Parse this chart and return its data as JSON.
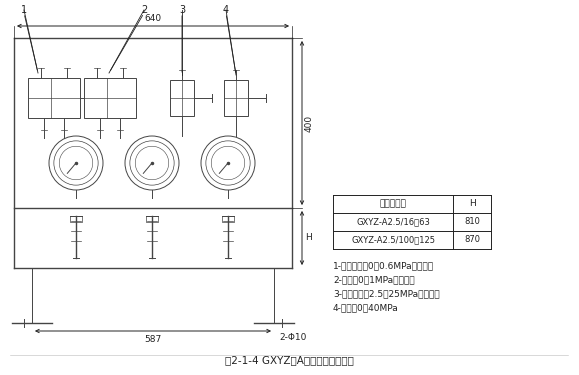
{
  "title": "图2-1-4 GXYZ型A系列稀油站仪表盘",
  "bg_color": "#ffffff",
  "table_header": [
    "稀油站规格",
    "H"
  ],
  "table_rows": [
    [
      "GXYZ-A2.5/16～63",
      "810"
    ],
    [
      "GXYZ-A2.5/100～125",
      "870"
    ]
  ],
  "notes": [
    "1-压力控制器0～0.6MPa（二个）",
    "2-压力表0～1MPa（二个）",
    "3-压力控制器2.5～25MPa（二个）",
    "4-压力表0～40MPa"
  ],
  "dim_640": "640",
  "dim_400": "400",
  "dim_H": "H",
  "dim_587": "587",
  "dim_phi": "2-Φ10",
  "labels": [
    "1",
    "2",
    "3",
    "4"
  ]
}
